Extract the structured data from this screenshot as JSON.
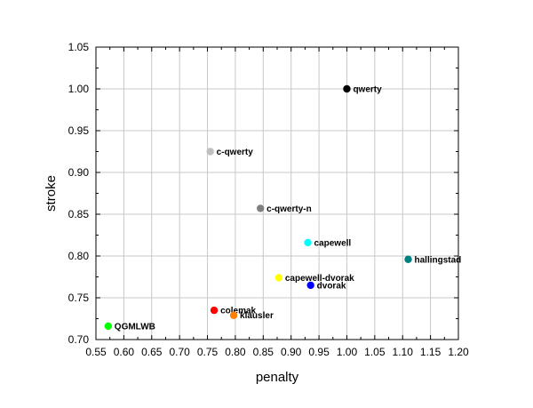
{
  "chart_data": {
    "type": "scatter",
    "title": "",
    "xlabel": "penalty",
    "ylabel": "stroke",
    "xlim": [
      0.55,
      1.2
    ],
    "ylim": [
      0.7,
      1.05
    ],
    "x_ticks": [
      "0.55",
      "0.60",
      "0.65",
      "0.70",
      "0.75",
      "0.80",
      "0.85",
      "0.90",
      "0.95",
      "1.00",
      "1.05",
      "1.10",
      "1.15",
      "1.20"
    ],
    "y_ticks": [
      "0.70",
      "0.75",
      "0.80",
      "0.85",
      "0.90",
      "0.95",
      "1.00",
      "1.05"
    ],
    "grid": true,
    "points": [
      {
        "label": "qwerty",
        "x": 1.0,
        "y": 1.0,
        "color": "#000000"
      },
      {
        "label": "c-qwerty",
        "x": 0.755,
        "y": 0.925,
        "color": "#c0c0c0"
      },
      {
        "label": "c-qwerty-n",
        "x": 0.845,
        "y": 0.857,
        "color": "#808080"
      },
      {
        "label": "capewell",
        "x": 0.93,
        "y": 0.816,
        "color": "#00ffff"
      },
      {
        "label": "hallingstad",
        "x": 1.11,
        "y": 0.796,
        "color": "#008080"
      },
      {
        "label": "capewell-dvorak",
        "x": 0.878,
        "y": 0.774,
        "color": "#ffff00"
      },
      {
        "label": "dvorak",
        "x": 0.935,
        "y": 0.765,
        "color": "#0000ff"
      },
      {
        "label": "colemak",
        "x": 0.762,
        "y": 0.735,
        "color": "#ff0000"
      },
      {
        "label": "klausler",
        "x": 0.797,
        "y": 0.729,
        "color": "#ff8000"
      },
      {
        "label": "QGMLWB",
        "x": 0.572,
        "y": 0.716,
        "color": "#00ff00"
      }
    ]
  }
}
